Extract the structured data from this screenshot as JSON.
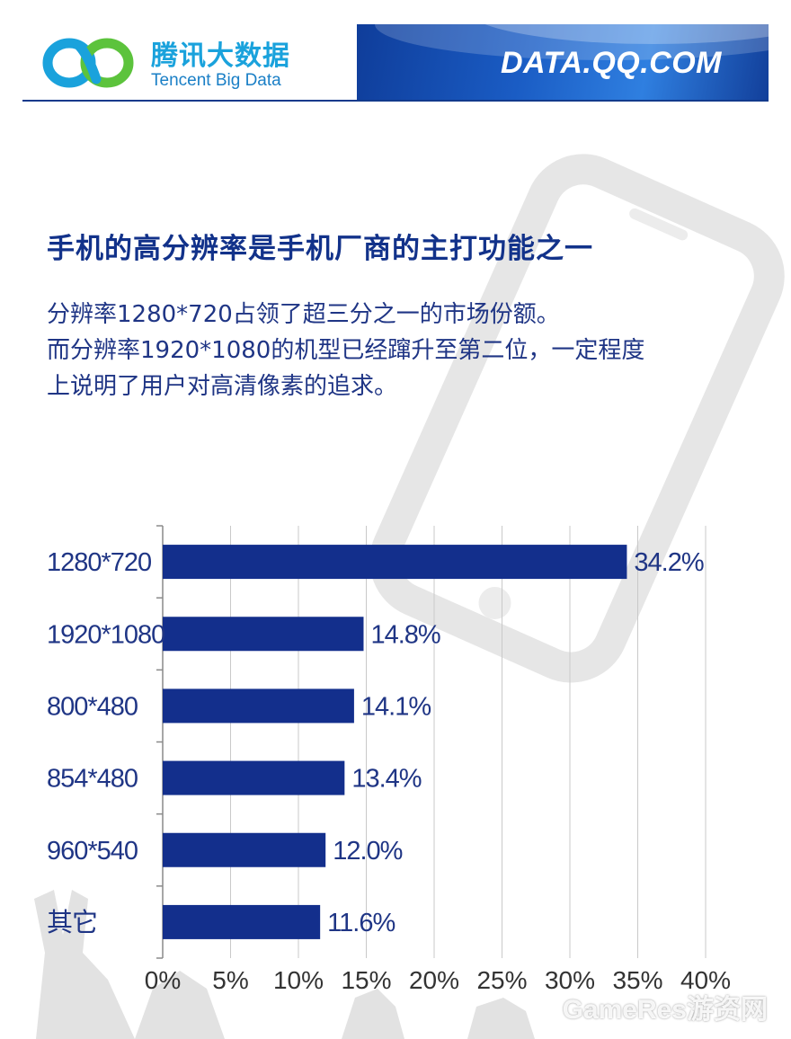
{
  "header": {
    "brand_cn": "腾讯大数据",
    "brand_en": "Tencent Big Data",
    "site": "DATA.QQ.COM",
    "brand_color": "#1aa2dc",
    "accent_color": "#123a8c"
  },
  "title": "手机的高分辨率是手机厂商的主打功能之一",
  "description": [
    "分辨率1280*720占领了超三分之一的市场份额。",
    "而分辨率1920*1080的机型已经蹿升至第二位，一定程度",
    "上说明了用户对高清像素的追求。"
  ],
  "watermark": "GameRes游资网",
  "chart_data": {
    "type": "bar",
    "orientation": "horizontal",
    "categories": [
      "1280*720",
      "1920*1080",
      "800*480",
      "854*480",
      "960*540",
      "其它"
    ],
    "values": [
      34.2,
      14.8,
      14.1,
      13.4,
      12.0,
      11.6
    ],
    "value_labels": [
      "34.2%",
      "14.8%",
      "14.1%",
      "13.4%",
      "12.0%",
      "11.6%"
    ],
    "x_ticks": [
      "0%",
      "5%",
      "10%",
      "15%",
      "20%",
      "25%",
      "30%",
      "35%",
      "40%"
    ],
    "xlim": [
      0,
      40
    ],
    "grid": true,
    "bar_color": "#132f8c"
  }
}
